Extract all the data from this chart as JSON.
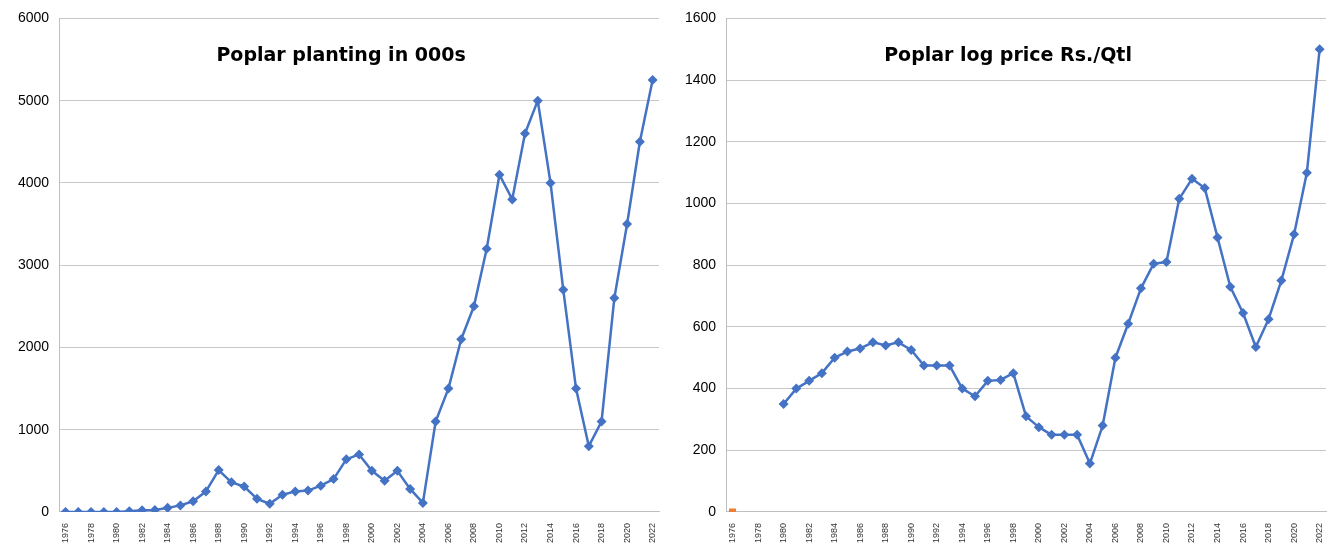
{
  "chart_data": [
    {
      "type": "line",
      "title": "Poplar planting in 000s",
      "categories": [
        "1976",
        null,
        "1978",
        null,
        "1980",
        null,
        "1982",
        null,
        "1984",
        null,
        "1986",
        null,
        "1988",
        null,
        "1990",
        null,
        "1992",
        null,
        "1994",
        null,
        "1996",
        null,
        "1998",
        null,
        "2000",
        null,
        "2002",
        null,
        "2004",
        null,
        "2006",
        null,
        "2008",
        null,
        "2010",
        null,
        "2012",
        null,
        "2014",
        null,
        "2016",
        null,
        "2018",
        null,
        "2020",
        null,
        "2022"
      ],
      "series": [
        {
          "color": "#4472c4",
          "marker": "diamond",
          "values": [
            0,
            0,
            0,
            0,
            0,
            10,
            20,
            25,
            50,
            80,
            130,
            250,
            510,
            360,
            310,
            160,
            100,
            210,
            250,
            260,
            320,
            400,
            640,
            700,
            500,
            380,
            500,
            280,
            110,
            1100,
            1500,
            2100,
            2500,
            3200,
            4100,
            3800,
            4600,
            5000,
            4000,
            2700,
            1500,
            800,
            1100,
            2600,
            3500,
            4500,
            5250
          ]
        }
      ],
      "ylim": [
        0,
        6000
      ],
      "yticks": [
        0,
        1000,
        2000,
        3000,
        4000,
        5000,
        6000
      ],
      "grid": "y"
    },
    {
      "type": "line",
      "title": "Poplar log price Rs./Qtl",
      "categories": [
        "1976",
        null,
        "1978",
        null,
        "1980",
        null,
        "1982",
        null,
        "1984",
        null,
        "1986",
        null,
        "1988",
        null,
        "1990",
        null,
        "1992",
        null,
        "1994",
        null,
        "1996",
        null,
        "1998",
        null,
        "2000",
        null,
        "2002",
        null,
        "2004",
        null,
        "2006",
        null,
        "2008",
        null,
        "2010",
        null,
        "2012",
        null,
        "2014",
        null,
        "2016",
        null,
        "2018",
        null,
        "2020",
        null,
        "2022"
      ],
      "series": [
        {
          "color": "#4472c4",
          "marker": "diamond",
          "values": [
            null,
            null,
            null,
            null,
            350,
            400,
            425,
            450,
            500,
            520,
            530,
            550,
            540,
            550,
            525,
            475,
            475,
            475,
            400,
            375,
            425,
            428,
            450,
            310,
            275,
            250,
            250,
            250,
            157,
            280,
            500,
            610,
            725,
            805,
            810,
            1015,
            1080,
            1050,
            890,
            730,
            645,
            535,
            625,
            750,
            900,
            1100,
            1500
          ]
        },
        {
          "color": "#ed7d31",
          "marker": "square",
          "values": [
            0,
            null,
            null,
            null,
            null,
            null,
            null,
            null,
            null,
            null,
            null,
            null,
            null,
            null,
            null,
            null,
            null,
            null,
            null,
            null,
            null,
            null,
            null,
            null,
            null,
            null,
            null,
            null,
            null,
            null,
            null,
            null,
            null,
            null,
            null,
            null,
            null,
            null,
            null,
            null,
            null,
            null,
            null,
            null,
            null,
            null,
            null
          ]
        }
      ],
      "ylim": [
        0,
        1600
      ],
      "yticks": [
        0,
        200,
        400,
        600,
        800,
        1000,
        1200,
        1400,
        1600
      ],
      "grid": "y"
    }
  ]
}
